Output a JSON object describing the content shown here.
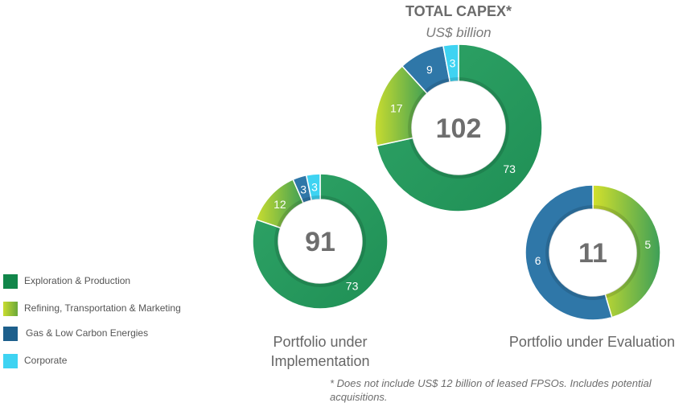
{
  "title": "TOTAL CAPEX*",
  "subtitle": "US$ billion",
  "colors": {
    "exploration": "#2e9a5c",
    "refining": "#a6c23a",
    "gas": "#2f77a8",
    "corporate": "#3ed3f2",
    "text_gray": "#6e6e6e"
  },
  "legend": [
    {
      "label": "Exploration & Production",
      "color": "#11864a"
    },
    {
      "label": "Refining, Transportation & Marketing",
      "color": "#a3c12c"
    },
    {
      "label": "Gas & Low Carbon Energies",
      "color": "#1d5f8c"
    },
    {
      "label": "Corporate",
      "color": "#3ed3f2"
    }
  ],
  "captions": {
    "implementation": "Portfolio under Implementation",
    "evaluation": "Portfolio under Evaluation"
  },
  "footnote": "* Does not include US$ 12 billion of leased FPSOs. Includes potential acquisitions.",
  "chart_data": [
    {
      "type": "pie",
      "title": "TOTAL CAPEX*",
      "subtitle": "US$ billion",
      "total": "102",
      "categories": [
        "Exploration & Production",
        "Refining, Transportation & Marketing",
        "Gas & Low Carbon Energies",
        "Corporate"
      ],
      "values": [
        73,
        17,
        9,
        3
      ],
      "labels": [
        "73",
        "17",
        "9",
        "3"
      ]
    },
    {
      "type": "pie",
      "title": "Portfolio under Implementation",
      "total": "91",
      "categories": [
        "Exploration & Production",
        "Refining, Transportation & Marketing",
        "Gas & Low Carbon Energies",
        "Corporate"
      ],
      "values": [
        73,
        12,
        3,
        3
      ],
      "labels": [
        "73",
        "12",
        "3",
        "3"
      ]
    },
    {
      "type": "pie",
      "title": "Portfolio under Evaluation",
      "total": "11",
      "categories": [
        "Refining, Transportation & Marketing",
        "Gas & Low Carbon Energies"
      ],
      "values": [
        5,
        6
      ],
      "labels": [
        "5",
        "6"
      ]
    }
  ]
}
